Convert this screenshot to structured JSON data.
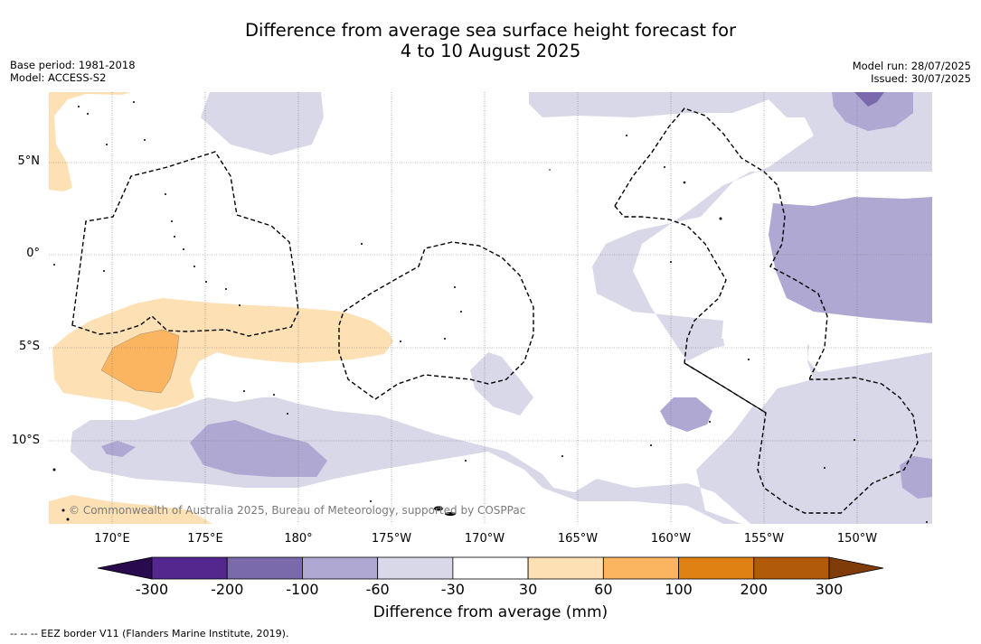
{
  "title_line1": "Difference from average sea surface height forecast for",
  "title_line2": "4 to 10 August 2025",
  "base_period": "Base period: 1981-2018",
  "model": "Model: ACCESS-S2",
  "model_run": "Model run: 28/07/2025",
  "issued": "Issued: 30/07/2025",
  "lat_labels": [
    "5°N",
    "0°",
    "5°S",
    "10°S"
  ],
  "lon_labels": [
    "170°E",
    "175°E",
    "180°",
    "175°W",
    "170°W",
    "165°W",
    "160°W",
    "155°W",
    "150°W"
  ],
  "colorbar": {
    "title": "Difference from average (mm)",
    "ticks": [
      "-300",
      "-200",
      "-100",
      "-60",
      "-30",
      "30",
      "60",
      "100",
      "200",
      "300"
    ],
    "colors": [
      "#2a0a4e",
      "#54278f",
      "#7a6aab",
      "#aea8d2",
      "#d8d8e9",
      "#ffffff",
      "#fde0b4",
      "#fbb560",
      "#e08213",
      "#b15a09",
      "#7f3b08"
    ]
  },
  "copyright": "© Commonwealth of Australia 2025, Bureau of Meteorology, supported by COSPPac",
  "footnote": "--  --  -- EEZ border V11 (Flanders Marine Institute, 2019)."
}
